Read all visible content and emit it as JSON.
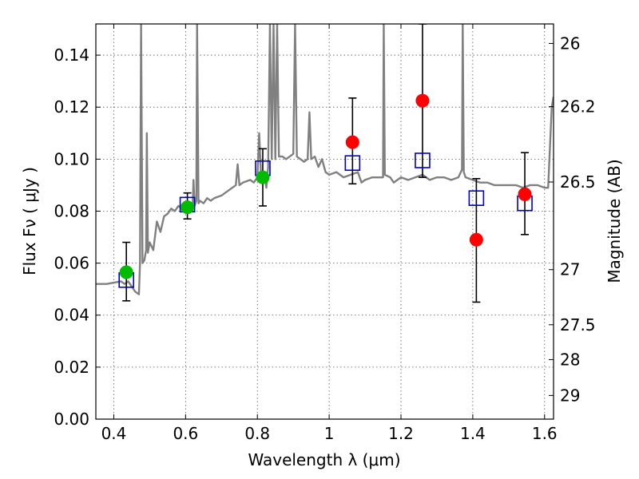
{
  "chart_data": {
    "type": "scatter",
    "title": "",
    "xlabel": "Wavelength  λ (μm)",
    "ylabel": "Flux  Fν  ( μJy )",
    "ylabel2": "Magnitude (AB)",
    "xlim": [
      0.35,
      1.625
    ],
    "ylim": [
      0.0,
      0.152
    ],
    "grid": true,
    "x_ticks": [
      0.4,
      0.6,
      0.8,
      1.0,
      1.2,
      1.4,
      1.6
    ],
    "x_tick_labels": [
      "0.4",
      "0.6",
      "0.8",
      "1",
      "1.2",
      "1.4",
      "1.6"
    ],
    "y_ticks": [
      0.0,
      0.02,
      0.04,
      0.06,
      0.08,
      0.1,
      0.12,
      0.14
    ],
    "y_tick_labels": [
      "0.00",
      "0.02",
      "0.04",
      "0.06",
      "0.08",
      "0.10",
      "0.12",
      "0.14"
    ],
    "right_ticks": [
      {
        "label": "26",
        "flux": 0.1445
      },
      {
        "label": "26.2",
        "flux": 0.1202
      },
      {
        "label": "26.5",
        "flux": 0.0912
      },
      {
        "label": "27",
        "flux": 0.0575
      },
      {
        "label": "27.5",
        "flux": 0.0363
      },
      {
        "label": "28",
        "flux": 0.0229
      },
      {
        "label": "29",
        "flux": 0.0091
      }
    ],
    "colors": {
      "model_spectrum": "#808080",
      "model_photometry": "#0000cc",
      "green_points": "#00bb00",
      "red_points": "#ff0000",
      "error_bars": "#000000",
      "grid": "#555555"
    },
    "series": [
      {
        "marker": "line",
        "color": "#808080",
        "points": [
          [
            0.35,
            0.052
          ],
          [
            0.38,
            0.052
          ],
          [
            0.4,
            0.0525
          ],
          [
            0.42,
            0.053
          ],
          [
            0.43,
            0.052
          ],
          [
            0.44,
            0.053
          ],
          [
            0.45,
            0.051
          ],
          [
            0.46,
            0.049
          ],
          [
            0.47,
            0.048
          ],
          [
            0.473,
            0.06
          ],
          [
            0.476,
            0.152
          ],
          [
            0.48,
            0.06
          ],
          [
            0.485,
            0.061
          ],
          [
            0.49,
            0.065
          ],
          [
            0.492,
            0.11
          ],
          [
            0.495,
            0.064
          ],
          [
            0.5,
            0.068
          ],
          [
            0.51,
            0.065
          ],
          [
            0.52,
            0.076
          ],
          [
            0.53,
            0.072
          ],
          [
            0.54,
            0.078
          ],
          [
            0.55,
            0.079
          ],
          [
            0.56,
            0.081
          ],
          [
            0.57,
            0.08
          ],
          [
            0.58,
            0.082
          ],
          [
            0.59,
            0.081
          ],
          [
            0.6,
            0.081
          ],
          [
            0.61,
            0.082
          ],
          [
            0.62,
            0.083
          ],
          [
            0.622,
            0.092
          ],
          [
            0.625,
            0.082
          ],
          [
            0.63,
            0.084
          ],
          [
            0.632,
            0.152
          ],
          [
            0.636,
            0.083
          ],
          [
            0.64,
            0.084
          ],
          [
            0.65,
            0.083
          ],
          [
            0.66,
            0.085
          ],
          [
            0.67,
            0.084
          ],
          [
            0.68,
            0.085
          ],
          [
            0.7,
            0.086
          ],
          [
            0.72,
            0.088
          ],
          [
            0.74,
            0.09
          ],
          [
            0.745,
            0.098
          ],
          [
            0.75,
            0.09
          ],
          [
            0.76,
            0.091
          ],
          [
            0.78,
            0.092
          ],
          [
            0.79,
            0.091
          ],
          [
            0.8,
            0.093
          ],
          [
            0.805,
            0.11
          ],
          [
            0.81,
            0.094
          ],
          [
            0.82,
            0.095
          ],
          [
            0.825,
            0.089
          ],
          [
            0.83,
            0.097
          ],
          [
            0.835,
            0.152
          ],
          [
            0.84,
            0.1
          ],
          [
            0.845,
            0.152
          ],
          [
            0.85,
            0.1
          ],
          [
            0.855,
            0.152
          ],
          [
            0.86,
            0.101
          ],
          [
            0.87,
            0.101
          ],
          [
            0.88,
            0.1
          ],
          [
            0.89,
            0.101
          ],
          [
            0.9,
            0.102
          ],
          [
            0.905,
            0.152
          ],
          [
            0.91,
            0.101
          ],
          [
            0.92,
            0.1
          ],
          [
            0.93,
            0.099
          ],
          [
            0.94,
            0.1
          ],
          [
            0.945,
            0.118
          ],
          [
            0.95,
            0.1
          ],
          [
            0.96,
            0.101
          ],
          [
            0.97,
            0.097
          ],
          [
            0.98,
            0.1
          ],
          [
            0.99,
            0.095
          ],
          [
            1.0,
            0.094
          ],
          [
            1.02,
            0.095
          ],
          [
            1.04,
            0.093
          ],
          [
            1.06,
            0.094
          ],
          [
            1.08,
            0.095
          ],
          [
            1.09,
            0.091
          ],
          [
            1.1,
            0.092
          ],
          [
            1.12,
            0.093
          ],
          [
            1.15,
            0.093
          ],
          [
            1.152,
            0.152
          ],
          [
            1.155,
            0.094
          ],
          [
            1.17,
            0.093
          ],
          [
            1.18,
            0.091
          ],
          [
            1.2,
            0.093
          ],
          [
            1.22,
            0.092
          ],
          [
            1.24,
            0.093
          ],
          [
            1.26,
            0.094
          ],
          [
            1.28,
            0.092
          ],
          [
            1.3,
            0.093
          ],
          [
            1.32,
            0.093
          ],
          [
            1.34,
            0.092
          ],
          [
            1.36,
            0.093
          ],
          [
            1.37,
            0.096
          ],
          [
            1.372,
            0.152
          ],
          [
            1.375,
            0.095
          ],
          [
            1.38,
            0.093
          ],
          [
            1.4,
            0.092
          ],
          [
            1.42,
            0.091
          ],
          [
            1.44,
            0.091
          ],
          [
            1.46,
            0.09
          ],
          [
            1.48,
            0.09
          ],
          [
            1.5,
            0.09
          ],
          [
            1.52,
            0.09
          ],
          [
            1.54,
            0.089
          ],
          [
            1.56,
            0.09
          ],
          [
            1.58,
            0.09
          ],
          [
            1.6,
            0.089
          ],
          [
            1.61,
            0.089
          ],
          [
            1.62,
            0.12
          ],
          [
            1.625,
            0.124
          ]
        ]
      },
      {
        "marker": "open-square",
        "color": "#0000cc",
        "x": [
          0.435,
          0.605,
          0.815,
          1.065,
          1.26,
          1.41,
          1.545
        ],
        "y": [
          0.0535,
          0.0825,
          0.0965,
          0.0985,
          0.0995,
          0.085,
          0.083
        ]
      },
      {
        "marker": "filled-circle",
        "color": "#00bb00",
        "x": [
          0.435,
          0.605,
          0.815
        ],
        "y": [
          0.0565,
          0.0815,
          0.093
        ],
        "yerr_low": [
          0.0455,
          0.077,
          0.082
        ],
        "yerr_high": [
          0.068,
          0.087,
          0.104
        ]
      },
      {
        "marker": "filled-circle",
        "color": "#ff0000",
        "x": [
          1.065,
          1.26,
          1.41,
          1.545
        ],
        "y": [
          0.1065,
          0.1225,
          0.069,
          0.0865
        ],
        "yerr_low": [
          0.0905,
          0.093,
          0.045,
          0.071
        ],
        "yerr_high": [
          0.1235,
          0.152,
          0.0925,
          0.1025
        ]
      }
    ]
  }
}
